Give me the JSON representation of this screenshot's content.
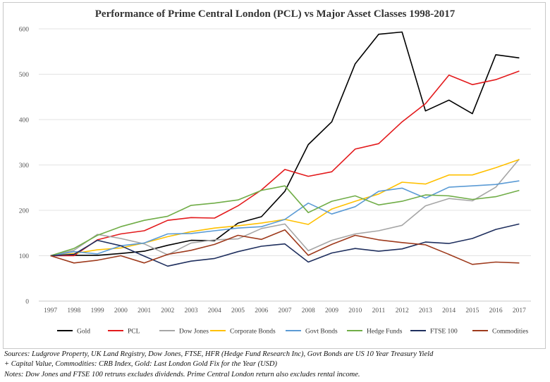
{
  "notes": {
    "sources": "Sources: Ludgrove Property, UK Land Registry, Dow Jones, FTSE, HFR (Hedge Fund Research Inc), Govt Bonds are US 10 Year Treasury Yield",
    "capital": "+ Capital Value, Commodities: CRB Index, Gold: Last London Gold Fix for the Year (USD)",
    "dividends": "Notes: Dow Jones and FTSE 100 retruns excludes dividends. Prime Central London return also excludes rental income."
  },
  "chart_data": {
    "type": "line",
    "title": "Performance of Prime Central London (PCL) vs Major Asset Classes 1998-2017",
    "xlabel": "",
    "ylabel": "",
    "x": [
      "1997",
      "1998",
      "1999",
      "2000",
      "2001",
      "2002",
      "2003",
      "2004",
      "2005",
      "2006",
      "2007",
      "2008",
      "2009",
      "2010",
      "2011",
      "2012",
      "2013",
      "2014",
      "2015",
      "2016",
      "2017"
    ],
    "ylim": [
      0,
      600
    ],
    "yticks": [
      "0",
      "100",
      "200",
      "300",
      "400",
      "500",
      "600"
    ],
    "grid": "horizontal",
    "legend": "bottom",
    "series": [
      {
        "name": "Gold",
        "color": "#000000",
        "values": [
          100,
          101,
          101,
          105,
          110,
          123,
          134,
          133,
          172,
          186,
          242,
          345,
          395,
          523,
          588,
          593,
          419,
          443,
          413,
          543,
          536
        ]
      },
      {
        "name": "PCL",
        "color": "#e31a1c",
        "values": [
          100,
          100,
          135,
          148,
          155,
          178,
          184,
          183,
          210,
          245,
          290,
          275,
          285,
          335,
          347,
          395,
          435,
          498,
          477,
          488,
          507
        ]
      },
      {
        "name": "Dow Jones",
        "color": "#a6a6a6",
        "values": [
          100,
          112,
          147,
          138,
          126,
          102,
          128,
          135,
          137,
          160,
          170,
          111,
          134,
          148,
          155,
          167,
          210,
          226,
          221,
          251,
          313
        ]
      },
      {
        "name": "Corporate Bonds",
        "color": "#ffc000",
        "values": [
          100,
          105,
          113,
          117,
          128,
          142,
          153,
          161,
          166,
          172,
          180,
          169,
          203,
          220,
          236,
          262,
          258,
          278,
          278,
          294,
          312
        ]
      },
      {
        "name": "Govt Bonds",
        "color": "#5b9bd5",
        "values": [
          100,
          109,
          104,
          122,
          128,
          148,
          149,
          155,
          161,
          164,
          180,
          216,
          192,
          208,
          242,
          249,
          227,
          251,
          254,
          257,
          265
        ]
      },
      {
        "name": "Hedge Funds",
        "color": "#70ad47",
        "values": [
          100,
          116,
          145,
          164,
          178,
          187,
          211,
          216,
          223,
          244,
          254,
          195,
          220,
          232,
          212,
          220,
          234,
          232,
          224,
          230,
          244
        ]
      },
      {
        "name": "FTSE 100",
        "color": "#1f2f5e",
        "values": [
          100,
          103,
          134,
          122,
          99,
          77,
          88,
          94,
          109,
          121,
          126,
          86,
          106,
          116,
          110,
          115,
          130,
          127,
          138,
          158,
          170
        ]
      },
      {
        "name": "Commodities",
        "color": "#9e3a1c",
        "values": [
          100,
          84,
          90,
          100,
          84,
          103,
          112,
          125,
          145,
          136,
          157,
          101,
          125,
          145,
          135,
          129,
          124,
          103,
          81,
          86,
          84
        ]
      }
    ]
  }
}
